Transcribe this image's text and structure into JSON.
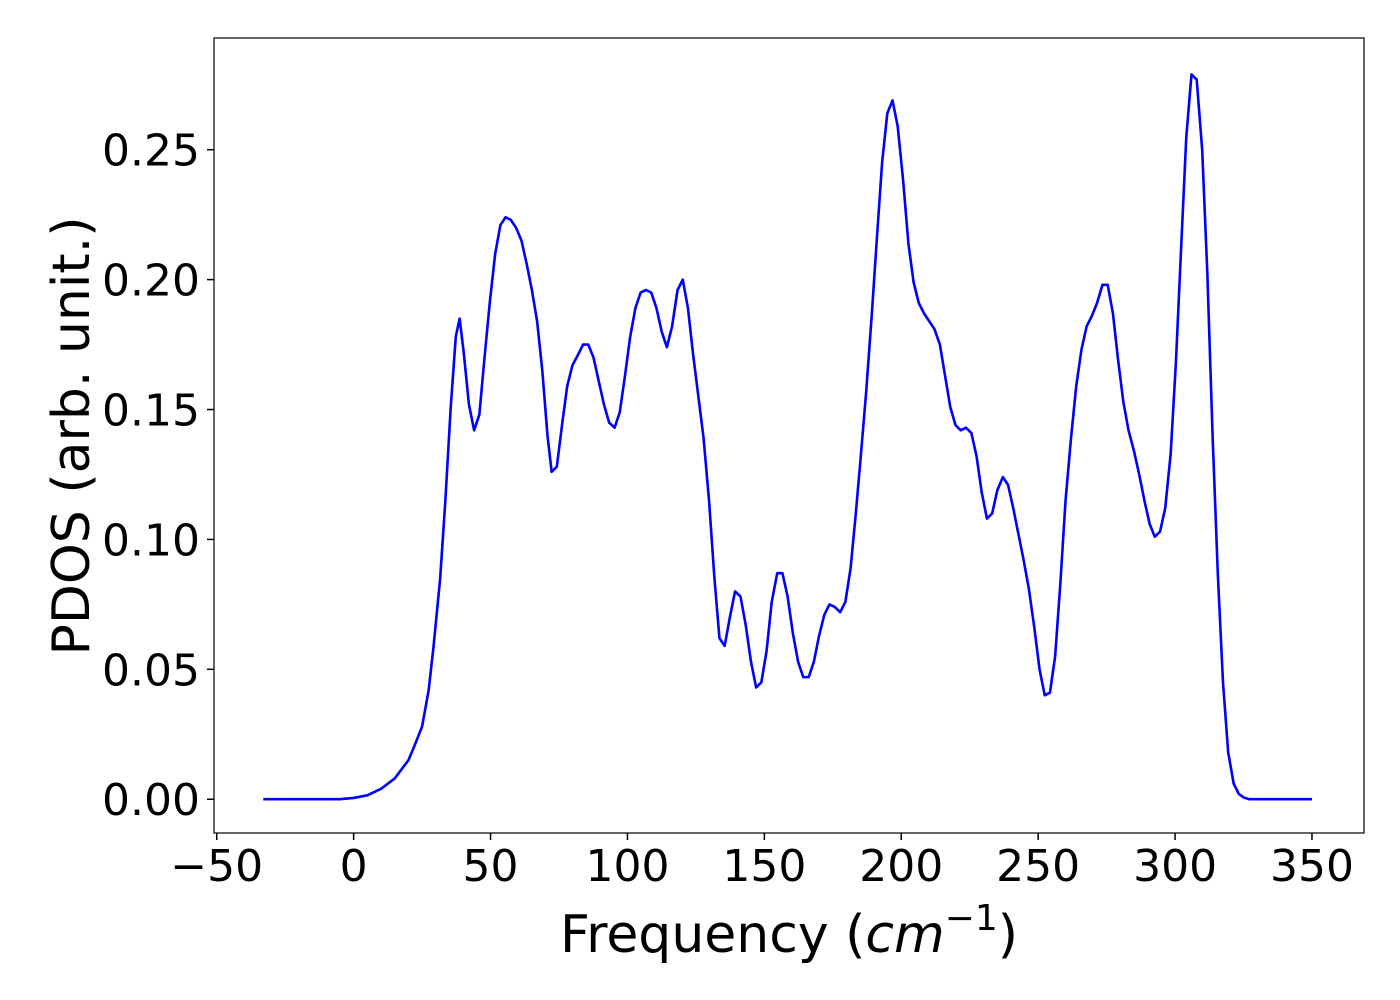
{
  "chart_data": {
    "type": "line",
    "ylabel": "PDOS (arb. unit.)",
    "xlabel": {
      "prefix": "Frequency (",
      "unit": "cm",
      "exponent": "−1",
      "suffix": ")"
    },
    "color": "#0000ff",
    "xlim": [
      -51,
      369
    ],
    "ylim": [
      -0.013,
      0.293
    ],
    "xticks": [
      {
        "value": -50,
        "label": "−50"
      },
      0,
      50,
      100,
      150,
      200,
      250,
      300,
      350
    ],
    "yticks": [
      {
        "value": 0,
        "label": "0.00"
      },
      {
        "value": 0.05,
        "label": "0.05"
      },
      {
        "value": 0.1,
        "label": "0.10"
      },
      {
        "value": 0.15,
        "label": "0.15"
      },
      {
        "value": 0.2,
        "label": "0.20"
      },
      {
        "value": 0.25,
        "label": "0.25"
      }
    ],
    "x": [
      -33,
      -20,
      -10,
      -5,
      0,
      5,
      10,
      15,
      20,
      22,
      25,
      27.4,
      29.2,
      31.6,
      33.5,
      35.4,
      37.3,
      38.7,
      40.2,
      42.1,
      44.0,
      45.9,
      47.8,
      49.8,
      51.7,
      53.6,
      55.5,
      57.4,
      59.3,
      61.3,
      63.2,
      65.1,
      67.0,
      68.9,
      70.8,
      72.3,
      74.2,
      76.1,
      78.0,
      79.9,
      81.9,
      83.8,
      85.7,
      87.6,
      89.5,
      91.4,
      93.3,
      95.3,
      97.2,
      99.1,
      101.0,
      102.9,
      104.8,
      106.8,
      108.7,
      110.6,
      112.5,
      114.4,
      116.3,
      118.3,
      120.2,
      122.1,
      124.0,
      125.9,
      127.8,
      129.8,
      131.7,
      133.6,
      135.5,
      137.4,
      139.3,
      141.3,
      143.2,
      145.1,
      147.0,
      148.9,
      150.8,
      152.7,
      154.7,
      156.6,
      158.5,
      160.4,
      162.3,
      164.2,
      166.2,
      168.1,
      170.0,
      171.9,
      173.8,
      175.7,
      177.7,
      179.6,
      181.5,
      183.4,
      185.3,
      187.2,
      189.2,
      191.1,
      193.0,
      194.9,
      196.8,
      198.7,
      200.7,
      202.6,
      204.5,
      206.4,
      208.3,
      210.2,
      212.1,
      214.1,
      216.0,
      217.9,
      219.8,
      221.7,
      223.6,
      225.6,
      227.5,
      229.4,
      231.3,
      233.2,
      235.1,
      237.1,
      239.0,
      240.9,
      242.8,
      244.7,
      246.6,
      248.6,
      250.5,
      252.4,
      254.3,
      256.2,
      258.1,
      260.0,
      262.0,
      263.9,
      265.8,
      267.7,
      269.6,
      271.5,
      273.5,
      275.4,
      277.3,
      279.2,
      281.1,
      283.0,
      285.0,
      286.9,
      288.8,
      290.7,
      292.6,
      294.5,
      296.4,
      298.4,
      300.3,
      302.2,
      304.1,
      306.0,
      307.9,
      309.9,
      311.8,
      313.7,
      315.6,
      317.5,
      319.4,
      321.4,
      323.3,
      325.2,
      327.1,
      350
    ],
    "values": [
      0,
      0,
      0,
      0,
      0.0005,
      0.0015,
      0.004,
      0.008,
      0.015,
      0.02,
      0.028,
      0.042,
      0.059,
      0.085,
      0.115,
      0.15,
      0.178,
      0.185,
      0.172,
      0.152,
      0.142,
      0.148,
      0.17,
      0.192,
      0.21,
      0.221,
      0.224,
      0.223,
      0.22,
      0.215,
      0.206,
      0.196,
      0.184,
      0.165,
      0.14,
      0.126,
      0.128,
      0.144,
      0.159,
      0.167,
      0.171,
      0.175,
      0.175,
      0.17,
      0.161,
      0.152,
      0.145,
      0.143,
      0.149,
      0.163,
      0.178,
      0.189,
      0.195,
      0.196,
      0.195,
      0.189,
      0.18,
      0.174,
      0.182,
      0.196,
      0.2,
      0.189,
      0.171,
      0.155,
      0.139,
      0.115,
      0.086,
      0.062,
      0.059,
      0.07,
      0.08,
      0.078,
      0.067,
      0.053,
      0.043,
      0.045,
      0.057,
      0.076,
      0.087,
      0.087,
      0.078,
      0.064,
      0.053,
      0.047,
      0.047,
      0.053,
      0.063,
      0.071,
      0.075,
      0.074,
      0.072,
      0.076,
      0.089,
      0.11,
      0.133,
      0.157,
      0.186,
      0.216,
      0.245,
      0.264,
      0.269,
      0.259,
      0.238,
      0.214,
      0.199,
      0.191,
      0.187,
      0.184,
      0.181,
      0.175,
      0.163,
      0.151,
      0.144,
      0.142,
      0.143,
      0.141,
      0.132,
      0.118,
      0.108,
      0.11,
      0.119,
      0.124,
      0.121,
      0.112,
      0.102,
      0.092,
      0.081,
      0.066,
      0.05,
      0.04,
      0.041,
      0.055,
      0.083,
      0.115,
      0.139,
      0.159,
      0.173,
      0.182,
      0.186,
      0.191,
      0.198,
      0.198,
      0.187,
      0.169,
      0.153,
      0.142,
      0.134,
      0.125,
      0.115,
      0.106,
      0.101,
      0.103,
      0.112,
      0.133,
      0.168,
      0.212,
      0.255,
      0.279,
      0.277,
      0.25,
      0.202,
      0.14,
      0.087,
      0.045,
      0.018,
      0.006,
      0.002,
      0.0006,
      0,
      0
    ]
  }
}
